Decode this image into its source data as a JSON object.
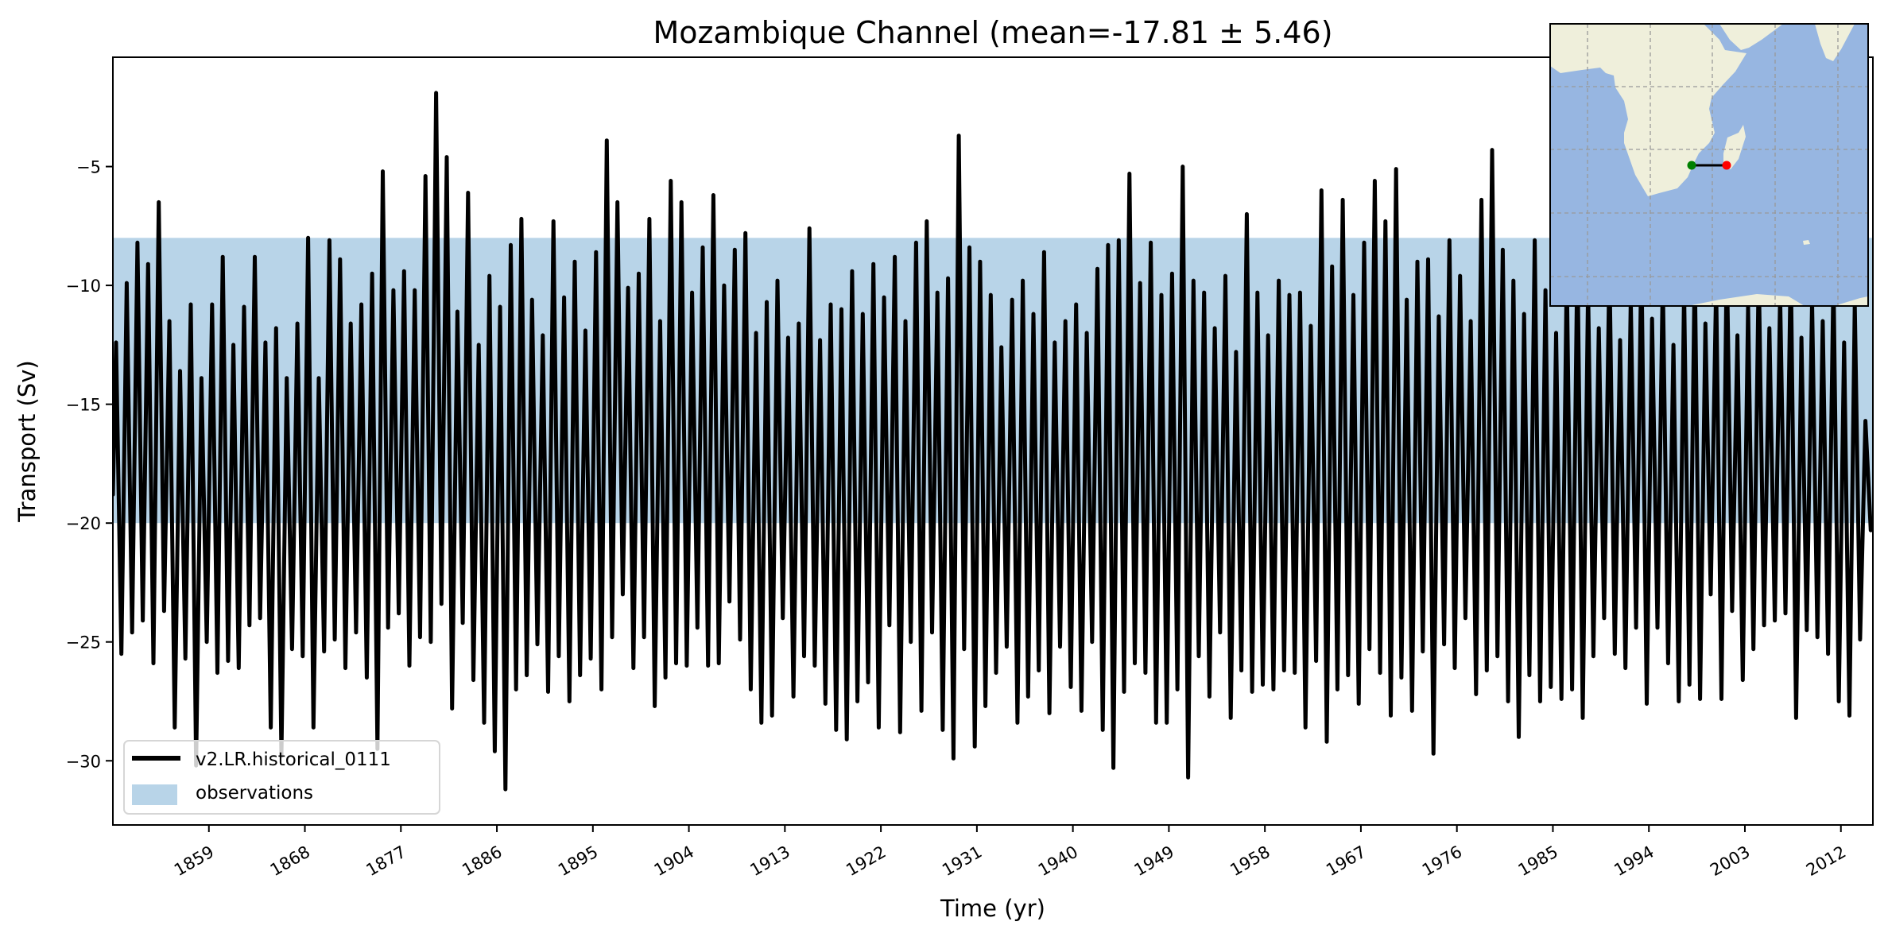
{
  "chart_data": {
    "type": "line",
    "title": "Mozambique Channel (mean=-17.81 ± 5.46)",
    "xlabel": "Time (yr)",
    "ylabel": "Transport (Sv)",
    "xlim": [
      1850,
      2015
    ],
    "ylim": [
      -32.7,
      -0.4
    ],
    "xticks": [
      1859,
      1868,
      1877,
      1886,
      1895,
      1904,
      1913,
      1922,
      1931,
      1940,
      1949,
      1958,
      1967,
      1976,
      1985,
      1994,
      2003,
      2012
    ],
    "yticks": [
      -30,
      -25,
      -20,
      -15,
      -10,
      -5
    ],
    "ytick_labels": [
      "−30",
      "−25",
      "−20",
      "−15",
      "−10",
      "−5"
    ],
    "grid": false,
    "legend_position": "lower-left",
    "observations": {
      "name": "observations",
      "range": [
        -20,
        -8
      ],
      "color": "#b8d4e8"
    },
    "series": [
      {
        "name": "v2.LR.historical_0111",
        "color": "#000000",
        "start_year": 1850,
        "start_value": -18.8,
        "annual_max": [
          -12.4,
          -9.9,
          -8.2,
          -9.1,
          -6.5,
          -11.5,
          -13.6,
          -10.8,
          -13.9,
          -10.8,
          -8.8,
          -12.5,
          -10.9,
          -8.8,
          -12.4,
          -11.8,
          -13.9,
          -11.6,
          -8.0,
          -13.9,
          -8.1,
          -8.9,
          -11.6,
          -10.8,
          -9.5,
          -5.2,
          -10.2,
          -9.4,
          -10.2,
          -5.4,
          -1.9,
          -4.6,
          -11.1,
          -6.1,
          -12.5,
          -9.6,
          -10.9,
          -8.3,
          -7.2,
          -10.6,
          -12.1,
          -7.3,
          -10.5,
          -9.0,
          -11.9,
          -8.6,
          -3.9,
          -6.5,
          -10.1,
          -9.5,
          -7.2,
          -11.5,
          -5.6,
          -6.5,
          -10.3,
          -8.4,
          -6.2,
          -10.0,
          -8.5,
          -7.8,
          -12.0,
          -10.7,
          -9.8,
          -12.2,
          -11.6,
          -7.6,
          -12.3,
          -10.8,
          -11.0,
          -9.4,
          -11.2,
          -9.1,
          -10.5,
          -8.8,
          -11.5,
          -8.2,
          -7.3,
          -10.3,
          -9.7,
          -3.7,
          -8.4,
          -9.0,
          -10.4,
          -12.6,
          -10.6,
          -9.8,
          -11.2,
          -8.6,
          -12.4,
          -11.5,
          -10.8,
          -12.0,
          -9.3,
          -8.3,
          -8.1,
          -5.3,
          -9.9,
          -8.2,
          -10.4,
          -9.5,
          -5.0,
          -9.8,
          -10.3,
          -11.8,
          -9.6,
          -12.8,
          -7.0,
          -10.3,
          -12.1,
          -9.8,
          -10.4,
          -10.3,
          -11.7,
          -6.0,
          -9.2,
          -6.4,
          -10.4,
          -8.2,
          -5.6,
          -7.3,
          -5.1,
          -10.6,
          -9.0,
          -8.9,
          -11.3,
          -8.1,
          -9.6,
          -11.5,
          -6.4,
          -4.3,
          -8.5,
          -9.8,
          -11.2,
          -8.1,
          -10.2,
          -12.0,
          -9.4,
          -8.5,
          -10.1,
          -11.8,
          -9.0,
          -12.3,
          -10.6,
          -8.8,
          -11.4,
          -9.7,
          -12.5,
          -10.2,
          -9.1,
          -11.6,
          -10.0,
          -8.7,
          -12.1,
          -10.9,
          -9.3,
          -11.8,
          -10.4,
          -9.0,
          -12.2,
          -10.7,
          -11.5,
          -9.6,
          -12.4,
          -10.8,
          -15.7
        ],
        "annual_min": [
          -25.5,
          -24.6,
          -24.1,
          -25.9,
          -23.7,
          -28.6,
          -25.7,
          -30.2,
          -25.0,
          -26.3,
          -25.8,
          -26.1,
          -24.3,
          -24.0,
          -28.6,
          -29.8,
          -25.3,
          -25.6,
          -28.6,
          -25.4,
          -24.9,
          -26.1,
          -24.6,
          -26.5,
          -29.5,
          -24.4,
          -23.8,
          -26.0,
          -24.8,
          -25.0,
          -23.4,
          -27.8,
          -24.2,
          -26.6,
          -28.4,
          -29.6,
          -31.2,
          -27.0,
          -26.4,
          -25.1,
          -27.1,
          -25.6,
          -27.5,
          -26.4,
          -25.7,
          -27.0,
          -24.8,
          -23.0,
          -26.1,
          -24.8,
          -27.7,
          -26.5,
          -25.9,
          -26.0,
          -24.4,
          -26.0,
          -25.9,
          -23.3,
          -24.9,
          -27.0,
          -28.4,
          -28.1,
          -24.0,
          -27.3,
          -25.6,
          -26.0,
          -27.6,
          -28.7,
          -29.1,
          -27.5,
          -26.7,
          -28.6,
          -24.3,
          -28.8,
          -25.0,
          -27.9,
          -24.6,
          -28.7,
          -29.9,
          -25.3,
          -29.4,
          -27.7,
          -26.3,
          -25.2,
          -28.4,
          -27.3,
          -26.2,
          -28.0,
          -25.2,
          -26.9,
          -27.9,
          -25.0,
          -28.7,
          -30.3,
          -27.1,
          -25.9,
          -26.3,
          -28.4,
          -28.4,
          -27.0,
          -30.7,
          -25.6,
          -27.3,
          -24.6,
          -28.2,
          -26.2,
          -27.1,
          -26.8,
          -27.0,
          -26.2,
          -26.3,
          -28.6,
          -25.8,
          -29.2,
          -27.0,
          -26.4,
          -27.6,
          -25.3,
          -26.3,
          -28.1,
          -26.5,
          -27.9,
          -25.4,
          -29.7,
          -25.1,
          -26.1,
          -24.0,
          -27.2,
          -26.2,
          -25.6,
          -27.5,
          -29.0,
          -26.4,
          -27.5,
          -26.9,
          -27.4,
          -27.0,
          -28.2,
          -25.6,
          -24.0,
          -25.5,
          -26.1,
          -24.4,
          -27.6,
          -24.4,
          -25.9,
          -27.5,
          -26.8,
          -27.4,
          -23.0,
          -27.4,
          -23.7,
          -26.6,
          -25.3,
          -24.3,
          -24.1,
          -23.8,
          -28.2,
          -24.5,
          -24.8,
          -25.5,
          -27.5,
          -28.1,
          -24.9,
          -20.3
        ]
      }
    ],
    "inset_map": {
      "ocean_color": "#97b6e1",
      "land_color": "#efefdb",
      "section_start_color": "#008000",
      "section_end_color": "#ff0000"
    }
  }
}
